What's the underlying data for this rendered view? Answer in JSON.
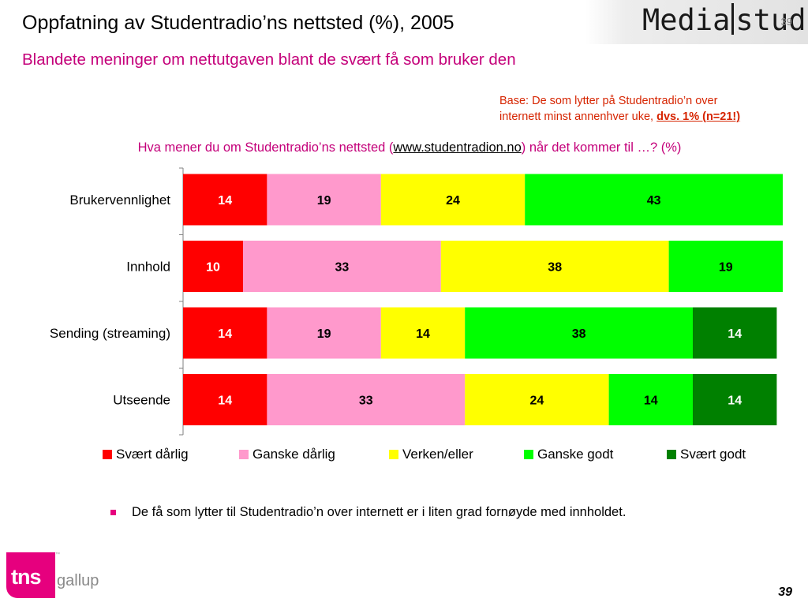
{
  "header": {
    "title": "Oppfatning av Studentradio’ns nettsted (%), 2005",
    "subtitle": "Blandete meninger om nettutgaven blant de svært få som bruker den",
    "logo_text_left": "Media",
    "logo_text_right": "stud",
    "corner_number": "39"
  },
  "base_note": {
    "line1": "Base: De som lytter på Studentradio’n over",
    "line2": "internett minst annenhver uke, ",
    "emphasis": "dvs. 1% (n=21!)"
  },
  "question": {
    "before": "Hva mener du om Studentradio’ns nettsted (",
    "link": "www.studentradion.no",
    "after": ") når det kommer til …? (%)"
  },
  "colors": {
    "svaert_darlig": "#ff0000",
    "ganske_darlig": "#ff99cc",
    "verken_eller": "#ffff00",
    "ganske_godt": "#00ff00",
    "svaert_godt": "#008000",
    "accent": "#c4007a",
    "note": "#d62400"
  },
  "chart_data": {
    "type": "bar",
    "orientation": "horizontal",
    "stacked": true,
    "categories": [
      "Brukervennlighet",
      "Innhold",
      "Sending (streaming)",
      "Utseende"
    ],
    "series": [
      {
        "name": "Svært dårlig",
        "values": [
          14,
          10,
          14,
          14
        ],
        "color": "#ff0000"
      },
      {
        "name": "Ganske dårlig",
        "values": [
          19,
          33,
          19,
          33
        ],
        "color": "#ff99cc"
      },
      {
        "name": "Verken/eller",
        "values": [
          24,
          38,
          14,
          24
        ],
        "color": "#ffff00"
      },
      {
        "name": "Ganske godt",
        "values": [
          43,
          19,
          38,
          14
        ],
        "color": "#00ff00"
      },
      {
        "name": "Svært godt",
        "values": [
          0,
          0,
          14,
          14
        ],
        "color": "#008000"
      }
    ],
    "legend_position": "bottom",
    "grid": false,
    "xlim": [
      0,
      100
    ]
  },
  "bullet_text": "De få som lytter til Studentradio’n over internett er i liten grad fornøyde med innholdet.",
  "footer": {
    "brand_tns": "tns",
    "brand_gallup": "gallup",
    "trademark": "™",
    "page_number": "39"
  }
}
